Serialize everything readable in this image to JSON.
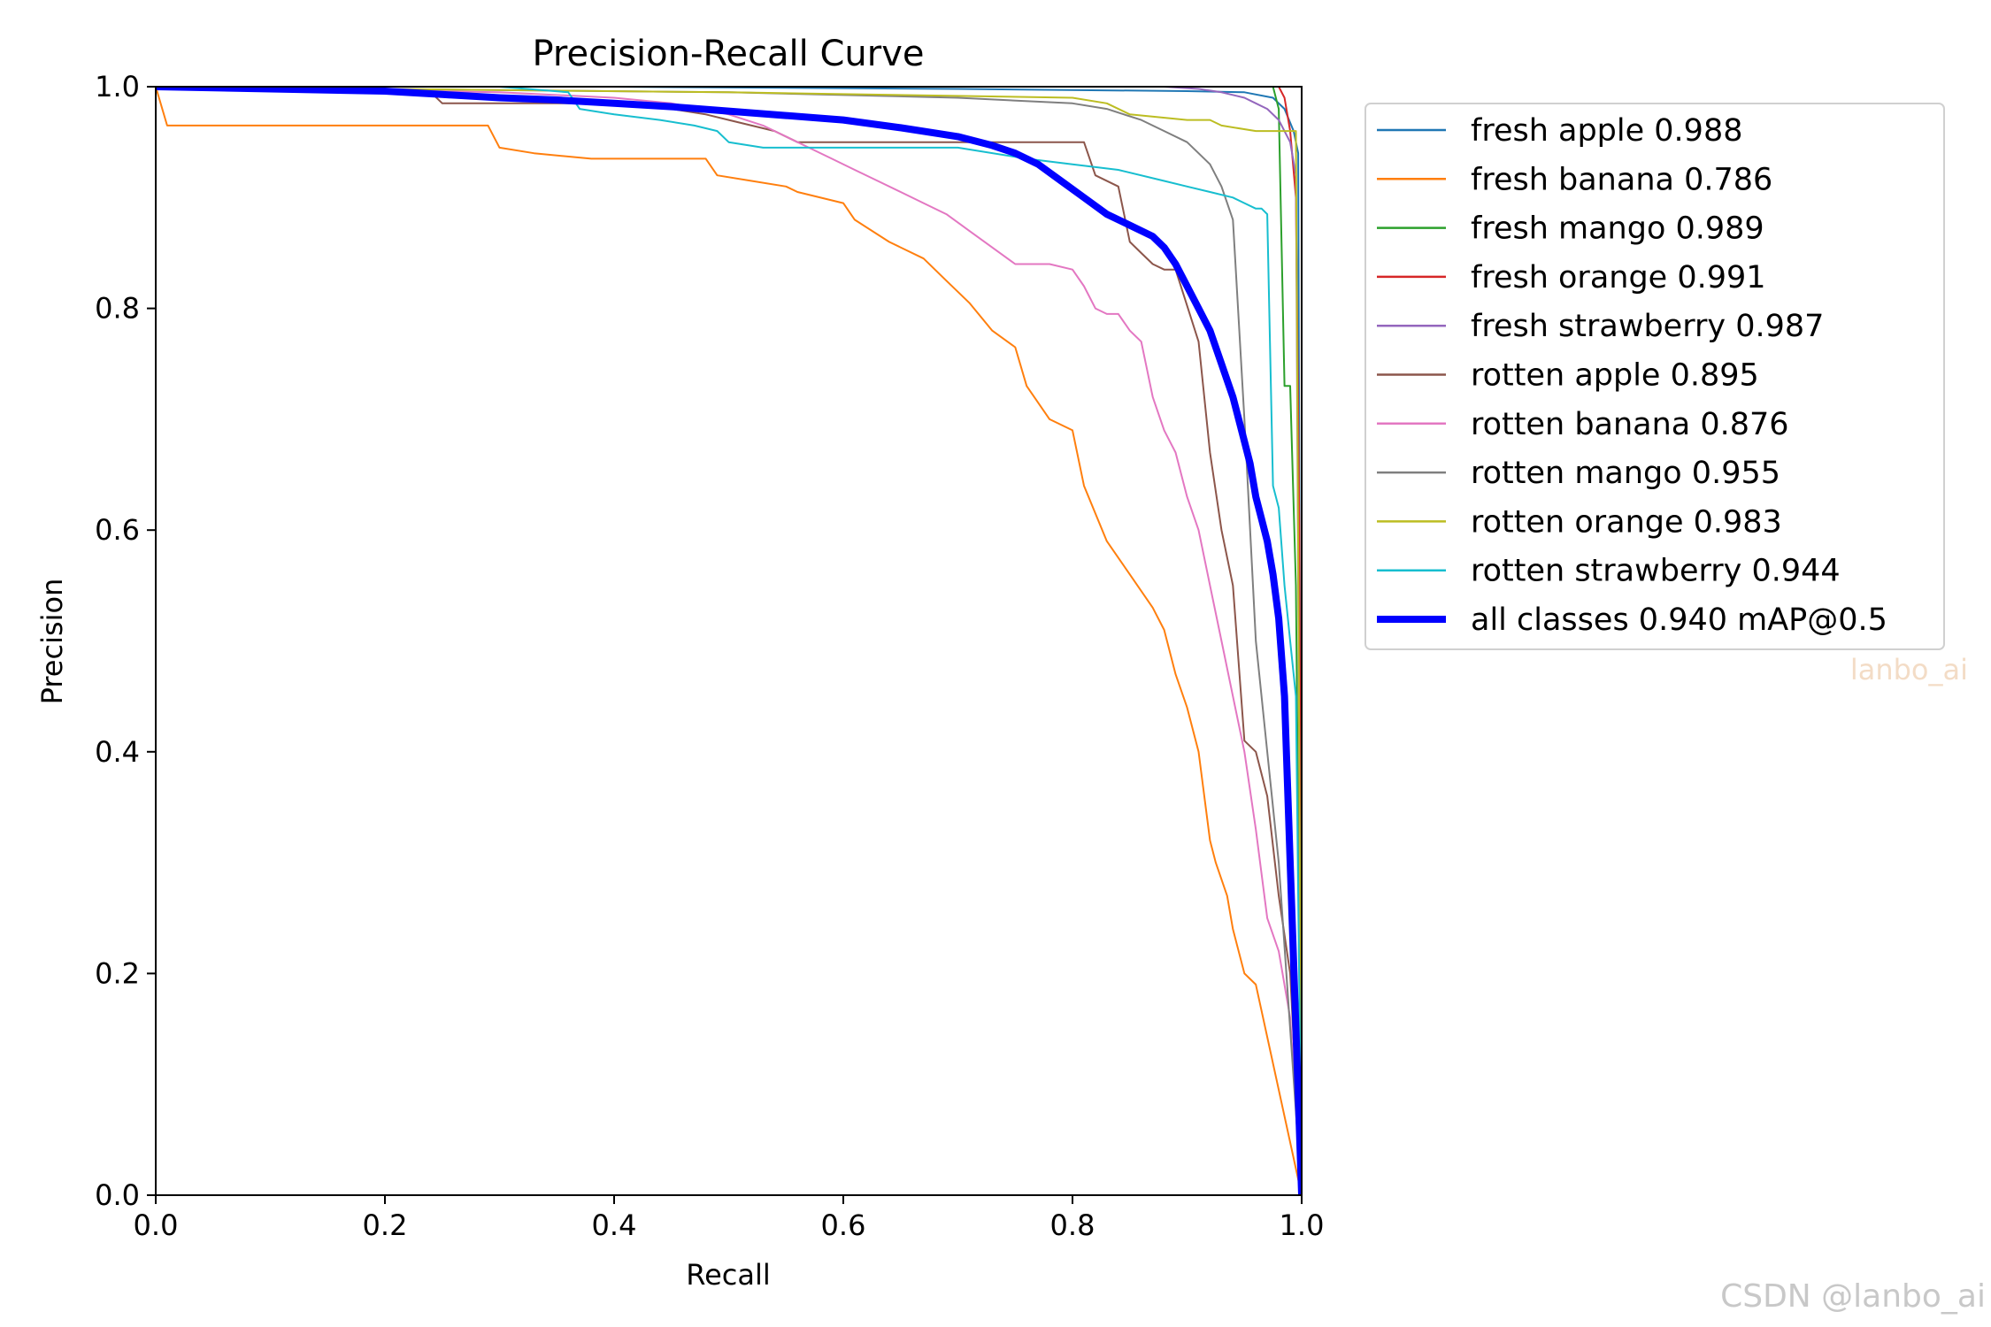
{
  "chart_data": {
    "type": "line",
    "title": "Precision-Recall Curve",
    "xlabel": "Recall",
    "ylabel": "Precision",
    "xlim": [
      0,
      1
    ],
    "ylim": [
      0,
      1
    ],
    "xticks": [
      "0.0",
      "0.2",
      "0.4",
      "0.6",
      "0.8",
      "1.0"
    ],
    "yticks": [
      "0.0",
      "0.2",
      "0.4",
      "0.6",
      "0.8",
      "1.0"
    ],
    "grid": false,
    "legend_position": "outside-right-top",
    "series": [
      {
        "name": "fresh apple 0.988",
        "color": "#1f77b4",
        "x": [
          0,
          0.4,
          0.7,
          0.9,
          0.95,
          0.975,
          0.985,
          0.993,
          0.997,
          1.0
        ],
        "y": [
          1,
          1,
          0.998,
          0.996,
          0.995,
          0.99,
          0.98,
          0.96,
          0.94,
          0
        ]
      },
      {
        "name": "fresh banana 0.786",
        "color": "#ff7f0e",
        "x": [
          0,
          0.01,
          0.05,
          0.29,
          0.3,
          0.33,
          0.38,
          0.4,
          0.48,
          0.49,
          0.52,
          0.55,
          0.56,
          0.6,
          0.61,
          0.64,
          0.67,
          0.69,
          0.71,
          0.73,
          0.75,
          0.76,
          0.78,
          0.8,
          0.81,
          0.83,
          0.85,
          0.87,
          0.88,
          0.89,
          0.9,
          0.91,
          0.92,
          0.925,
          0.935,
          0.94,
          0.95,
          0.96,
          1.0
        ],
        "y": [
          1,
          0.965,
          0.965,
          0.965,
          0.945,
          0.94,
          0.935,
          0.935,
          0.935,
          0.92,
          0.915,
          0.91,
          0.905,
          0.895,
          0.88,
          0.86,
          0.845,
          0.825,
          0.805,
          0.78,
          0.765,
          0.73,
          0.7,
          0.69,
          0.64,
          0.59,
          0.56,
          0.53,
          0.51,
          0.47,
          0.44,
          0.4,
          0.32,
          0.3,
          0.27,
          0.24,
          0.2,
          0.19,
          0
        ]
      },
      {
        "name": "fresh mango 0.989",
        "color": "#2ca02c",
        "x": [
          0,
          0.6,
          0.9,
          0.97,
          0.975,
          0.98,
          0.985,
          0.99,
          0.995,
          1.0
        ],
        "y": [
          1,
          1,
          1,
          1,
          1,
          0.98,
          0.73,
          0.73,
          0.55,
          0
        ]
      },
      {
        "name": "fresh orange 0.991",
        "color": "#d62728",
        "x": [
          0,
          0.7,
          0.95,
          0.98,
          0.985,
          0.99,
          0.995,
          0.998,
          1.0
        ],
        "y": [
          1,
          1,
          1,
          1,
          0.99,
          0.96,
          0.9,
          0.6,
          0
        ]
      },
      {
        "name": "fresh strawberry 0.987",
        "color": "#9467bd",
        "x": [
          0,
          0.43,
          0.7,
          0.88,
          0.91,
          0.93,
          0.95,
          0.96,
          0.97,
          0.98,
          0.99,
          0.995,
          1.0
        ],
        "y": [
          1,
          1,
          1,
          1,
          0.998,
          0.995,
          0.99,
          0.985,
          0.98,
          0.97,
          0.95,
          0.92,
          0
        ]
      },
      {
        "name": "rotten apple 0.895",
        "color": "#8c564b",
        "x": [
          0,
          0.24,
          0.25,
          0.35,
          0.38,
          0.45,
          0.48,
          0.5,
          0.54,
          0.56,
          0.6,
          0.65,
          0.69,
          0.72,
          0.75,
          0.78,
          0.81,
          0.82,
          0.84,
          0.85,
          0.86,
          0.87,
          0.88,
          0.89,
          0.91,
          0.92,
          0.93,
          0.94,
          0.95,
          0.96,
          0.97,
          0.98,
          0.99,
          1.0
        ],
        "y": [
          1,
          0.995,
          0.985,
          0.985,
          0.985,
          0.98,
          0.975,
          0.97,
          0.96,
          0.95,
          0.95,
          0.95,
          0.95,
          0.95,
          0.95,
          0.95,
          0.95,
          0.92,
          0.91,
          0.86,
          0.85,
          0.84,
          0.835,
          0.835,
          0.77,
          0.67,
          0.6,
          0.55,
          0.41,
          0.4,
          0.36,
          0.27,
          0.2,
          0
        ]
      },
      {
        "name": "rotten banana 0.876",
        "color": "#e377c2",
        "x": [
          0,
          0.3,
          0.4,
          0.45,
          0.5,
          0.53,
          0.55,
          0.57,
          0.59,
          0.61,
          0.63,
          0.65,
          0.67,
          0.69,
          0.71,
          0.73,
          0.75,
          0.77,
          0.78,
          0.8,
          0.81,
          0.82,
          0.83,
          0.84,
          0.85,
          0.86,
          0.87,
          0.88,
          0.89,
          0.9,
          0.91,
          0.92,
          0.93,
          0.94,
          0.95,
          0.96,
          0.97,
          0.98,
          0.99,
          1.0
        ],
        "y": [
          1,
          0.995,
          0.99,
          0.985,
          0.975,
          0.965,
          0.955,
          0.945,
          0.935,
          0.925,
          0.915,
          0.905,
          0.895,
          0.885,
          0.87,
          0.855,
          0.84,
          0.84,
          0.84,
          0.835,
          0.82,
          0.8,
          0.795,
          0.795,
          0.78,
          0.77,
          0.72,
          0.69,
          0.67,
          0.63,
          0.6,
          0.55,
          0.5,
          0.45,
          0.4,
          0.33,
          0.25,
          0.22,
          0.16,
          0
        ]
      },
      {
        "name": "rotten mango 0.955",
        "color": "#7f7f7f",
        "x": [
          0,
          0.5,
          0.7,
          0.8,
          0.83,
          0.86,
          0.88,
          0.9,
          0.91,
          0.92,
          0.93,
          0.94,
          0.95,
          0.96,
          0.97,
          0.98,
          0.99,
          1.0
        ],
        "y": [
          1,
          0.995,
          0.99,
          0.985,
          0.98,
          0.97,
          0.96,
          0.95,
          0.94,
          0.93,
          0.91,
          0.88,
          0.7,
          0.5,
          0.4,
          0.3,
          0.15,
          0
        ]
      },
      {
        "name": "rotten orange 0.983",
        "color": "#bcbd22",
        "x": [
          0,
          0.5,
          0.8,
          0.83,
          0.85,
          0.9,
          0.92,
          0.93,
          0.96,
          0.97,
          0.98,
          0.99,
          0.995,
          1.0
        ],
        "y": [
          1,
          0.995,
          0.99,
          0.985,
          0.975,
          0.97,
          0.97,
          0.965,
          0.96,
          0.96,
          0.96,
          0.96,
          0.96,
          0
        ]
      },
      {
        "name": "rotten strawberry 0.944",
        "color": "#17becf",
        "x": [
          0,
          0.3,
          0.36,
          0.37,
          0.4,
          0.44,
          0.47,
          0.49,
          0.5,
          0.53,
          0.56,
          0.6,
          0.65,
          0.7,
          0.76,
          0.8,
          0.84,
          0.88,
          0.9,
          0.92,
          0.94,
          0.95,
          0.96,
          0.965,
          0.97,
          0.975,
          0.98,
          0.985,
          0.99,
          0.995,
          1.0
        ],
        "y": [
          1,
          1,
          0.995,
          0.98,
          0.975,
          0.97,
          0.965,
          0.96,
          0.95,
          0.945,
          0.945,
          0.945,
          0.945,
          0.945,
          0.935,
          0.93,
          0.925,
          0.915,
          0.91,
          0.905,
          0.9,
          0.895,
          0.89,
          0.89,
          0.885,
          0.64,
          0.62,
          0.55,
          0.5,
          0.45,
          0
        ]
      },
      {
        "name": "all classes 0.940 mAP@0.5",
        "color": "#0000ff",
        "bold": true,
        "x": [
          0,
          0.1,
          0.2,
          0.25,
          0.3,
          0.35,
          0.4,
          0.45,
          0.5,
          0.55,
          0.6,
          0.65,
          0.7,
          0.73,
          0.75,
          0.77,
          0.79,
          0.81,
          0.83,
          0.85,
          0.87,
          0.88,
          0.89,
          0.9,
          0.91,
          0.92,
          0.93,
          0.94,
          0.945,
          0.95,
          0.955,
          0.96,
          0.965,
          0.97,
          0.975,
          0.98,
          0.985,
          0.99,
          0.995,
          1.0
        ],
        "y": [
          1,
          0.998,
          0.996,
          0.993,
          0.99,
          0.988,
          0.985,
          0.982,
          0.978,
          0.974,
          0.97,
          0.963,
          0.955,
          0.947,
          0.94,
          0.93,
          0.915,
          0.9,
          0.885,
          0.875,
          0.865,
          0.855,
          0.84,
          0.82,
          0.8,
          0.78,
          0.75,
          0.72,
          0.7,
          0.68,
          0.66,
          0.63,
          0.61,
          0.59,
          0.56,
          0.52,
          0.45,
          0.3,
          0.15,
          0
        ]
      }
    ]
  },
  "watermarks": {
    "legend_mark": "lanbo_ai",
    "footer_mark": "CSDN @lanbo_ai"
  }
}
